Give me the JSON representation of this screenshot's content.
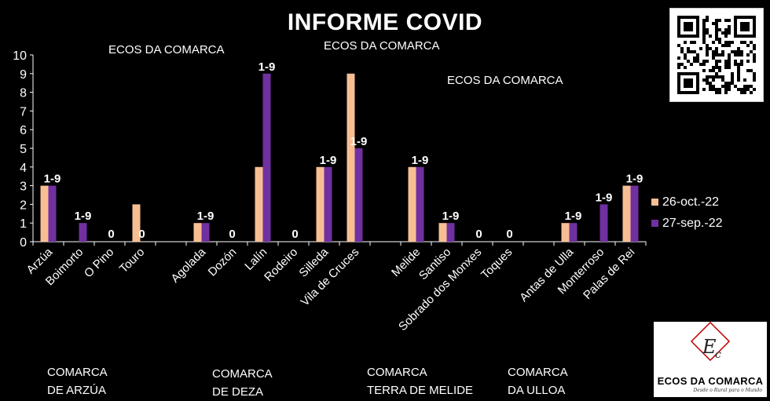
{
  "title": "INFORME COVID",
  "watermarks": [
    "ECOS DA COMARCA",
    "ECOS DA COMARCA",
    "ECOS DA COMARCA"
  ],
  "logo": {
    "name": "ECOS DA COMARCA",
    "tagline": "Desde o Rural para o Mundo"
  },
  "comarcas": [
    {
      "line1": "COMARCA",
      "line2": "DE ARZÚA"
    },
    {
      "line1": "COMARCA",
      "line2": "DE DEZA"
    },
    {
      "line1": "COMARCA",
      "line2": "TERRA DE MELIDE"
    },
    {
      "line1": "COMARCA",
      "line2": "DA ULLOA"
    }
  ],
  "chart_data": {
    "type": "bar",
    "title": "INFORME COVID",
    "ylim": [
      0,
      10
    ],
    "yticks": [
      0,
      1,
      2,
      3,
      4,
      5,
      6,
      7,
      8,
      9,
      10
    ],
    "grid": false,
    "legend_position": "right",
    "categories": [
      "Arzúa",
      "Boimorto",
      "O Pino",
      "Touro",
      "",
      "Agolada",
      "Dozón",
      "Lalín",
      "Rodeiro",
      "Silleda",
      "Vila de Cruces",
      "",
      "Melide",
      "Santiso",
      "Sobrado dos Monxes",
      "Toques",
      "",
      "Antas de Ulla",
      "Monterroso",
      "Palas de Rei"
    ],
    "series": [
      {
        "name": "26-oct.-22",
        "color": "#f8be93",
        "values": [
          3,
          0,
          0,
          2,
          null,
          1,
          0,
          4,
          0,
          4,
          9,
          null,
          4,
          1,
          0,
          0,
          null,
          1,
          0,
          3
        ]
      },
      {
        "name": "27-sep.-22",
        "color": "#7030a0",
        "values": [
          3,
          1,
          0,
          0,
          null,
          1,
          0,
          9,
          0,
          4,
          5,
          null,
          4,
          1,
          0,
          0,
          null,
          1,
          2,
          3
        ]
      }
    ],
    "data_labels": [
      "1-9",
      "1-9",
      "0",
      "0",
      "",
      "1-9",
      "0",
      "1-9",
      "0",
      "1-9",
      "1-9",
      "",
      "1-9",
      "1-9",
      "0",
      "0",
      "",
      "1-9",
      "1-9",
      "1-9"
    ]
  }
}
